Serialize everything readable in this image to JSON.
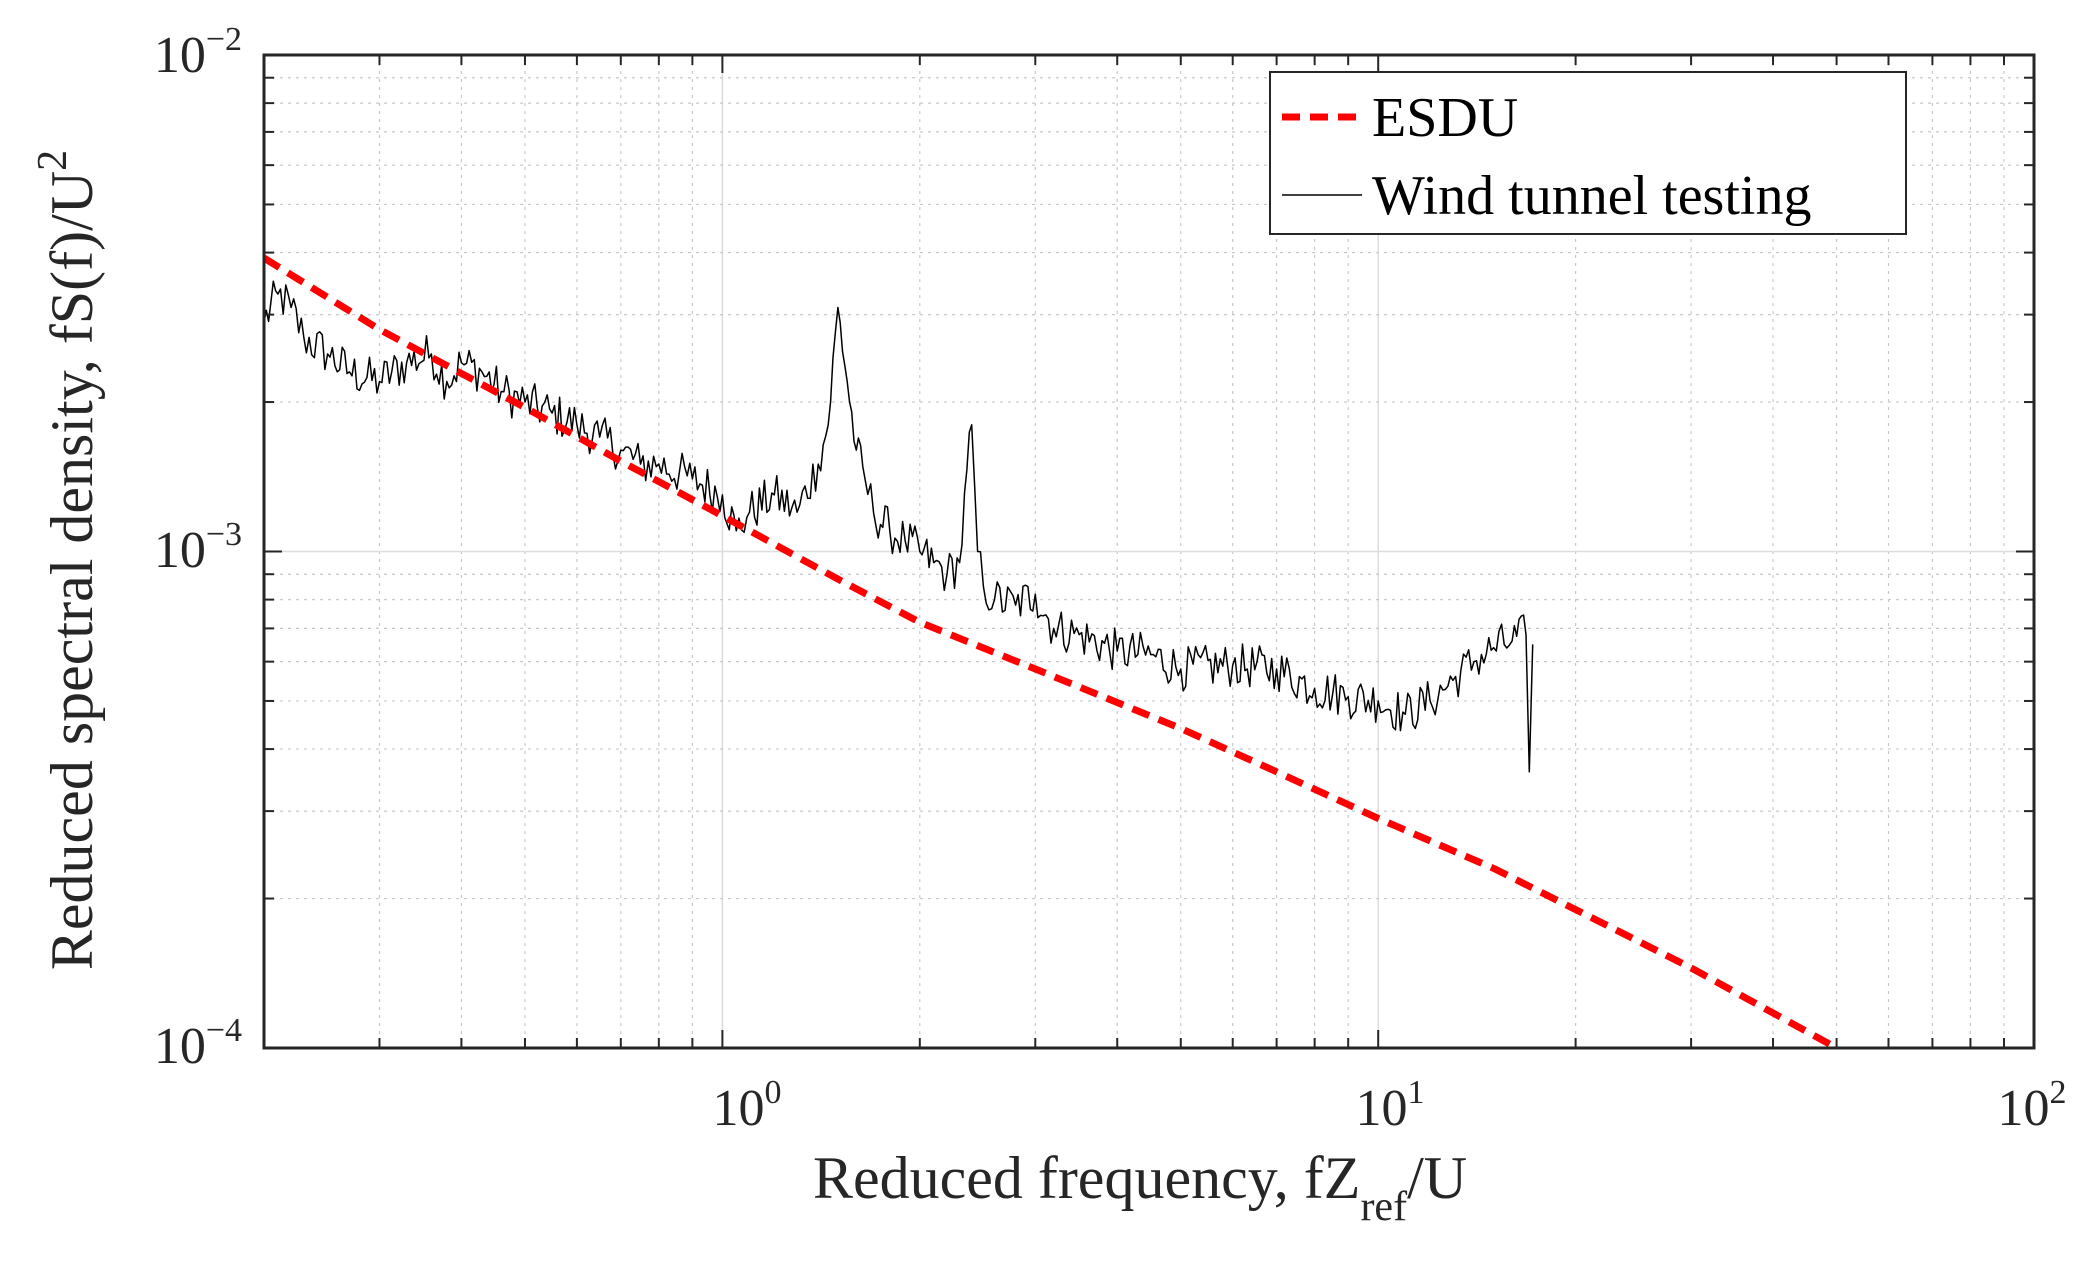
{
  "chart_data": {
    "type": "line",
    "scale": {
      "x": "log",
      "y": "log"
    },
    "xlim": [
      0.2,
      100
    ],
    "ylim": [
      0.0001,
      0.01
    ],
    "grid": true,
    "minor_grid": true,
    "xlabel": {
      "main": "Reduced frequency, fZ",
      "sub": "ref",
      "tail": "/U"
    },
    "ylabel": {
      "main": "Reduced spectral density, fS(f)/U",
      "sup": "2"
    },
    "x_ticks": [
      {
        "value": 1,
        "base": "10",
        "exp": "0"
      },
      {
        "value": 10,
        "base": "10",
        "exp": "1"
      },
      {
        "value": 100,
        "base": "10",
        "exp": "2"
      }
    ],
    "y_ticks": [
      {
        "value": 0.0001,
        "base": "10",
        "exp": "−4"
      },
      {
        "value": 0.001,
        "base": "10",
        "exp": "−3"
      },
      {
        "value": 0.01,
        "base": "10",
        "exp": "−2"
      }
    ],
    "legend": {
      "position": "top-right",
      "entries": [
        "ESDU",
        "Wind tunnel testing"
      ]
    },
    "series": [
      {
        "name": "ESDU",
        "style": "dashed",
        "color": "#ff0000",
        "x": [
          0.2,
          0.3,
          0.5,
          0.7,
          1.0,
          1.5,
          2.0,
          3.0,
          5.0,
          7.0,
          10.0,
          15.0,
          20.0,
          30.0,
          50.0
        ],
        "y": [
          0.0039,
          0.0028,
          0.00195,
          0.00152,
          0.00118,
          0.00088,
          0.00072,
          0.00058,
          0.00044,
          0.00036,
          0.00029,
          0.00023,
          0.00019,
          0.000145,
          0.0001
        ]
      },
      {
        "name": "Wind tunnel testing",
        "style": "solid",
        "color": "#000000",
        "x": [
          0.2,
          0.21,
          0.22,
          0.23,
          0.25,
          0.27,
          0.3,
          0.33,
          0.36,
          0.38,
          0.4,
          0.43,
          0.46,
          0.5,
          0.55,
          0.6,
          0.65,
          0.7,
          0.75,
          0.8,
          0.9,
          1.0,
          1.05,
          1.1,
          1.2,
          1.3,
          1.4,
          1.45,
          1.5,
          1.55,
          1.6,
          1.65,
          1.7,
          1.8,
          1.9,
          2.0,
          2.1,
          2.2,
          2.3,
          2.4,
          2.45,
          2.5,
          2.6,
          2.8,
          3.0,
          3.2,
          3.5,
          4.0,
          4.5,
          5.0,
          6.0,
          7.0,
          8.0,
          9.0,
          10.0,
          11.0,
          12.0,
          13.0,
          14.0,
          15.0,
          16.0,
          16.8,
          17.0,
          17.2
        ],
        "y": [
          0.0029,
          0.0033,
          0.0031,
          0.0027,
          0.0025,
          0.0023,
          0.0022,
          0.0024,
          0.0025,
          0.0022,
          0.0024,
          0.0023,
          0.0021,
          0.002,
          0.0019,
          0.0018,
          0.0017,
          0.0016,
          0.0015,
          0.0015,
          0.0014,
          0.0013,
          0.0011,
          0.0012,
          0.0013,
          0.0012,
          0.0015,
          0.0018,
          0.0031,
          0.0022,
          0.0016,
          0.0014,
          0.0012,
          0.0011,
          0.00105,
          0.001,
          0.00095,
          0.0009,
          0.00095,
          0.0018,
          0.001,
          0.00085,
          0.0008,
          0.00078,
          0.00082,
          0.0007,
          0.00068,
          0.00063,
          0.00062,
          0.00058,
          0.00059,
          0.00058,
          0.00053,
          0.00051,
          0.0005,
          0.00047,
          0.0005,
          0.00055,
          0.0006,
          0.00064,
          0.00066,
          0.00068,
          0.00036,
          0.00065
        ]
      }
    ]
  }
}
